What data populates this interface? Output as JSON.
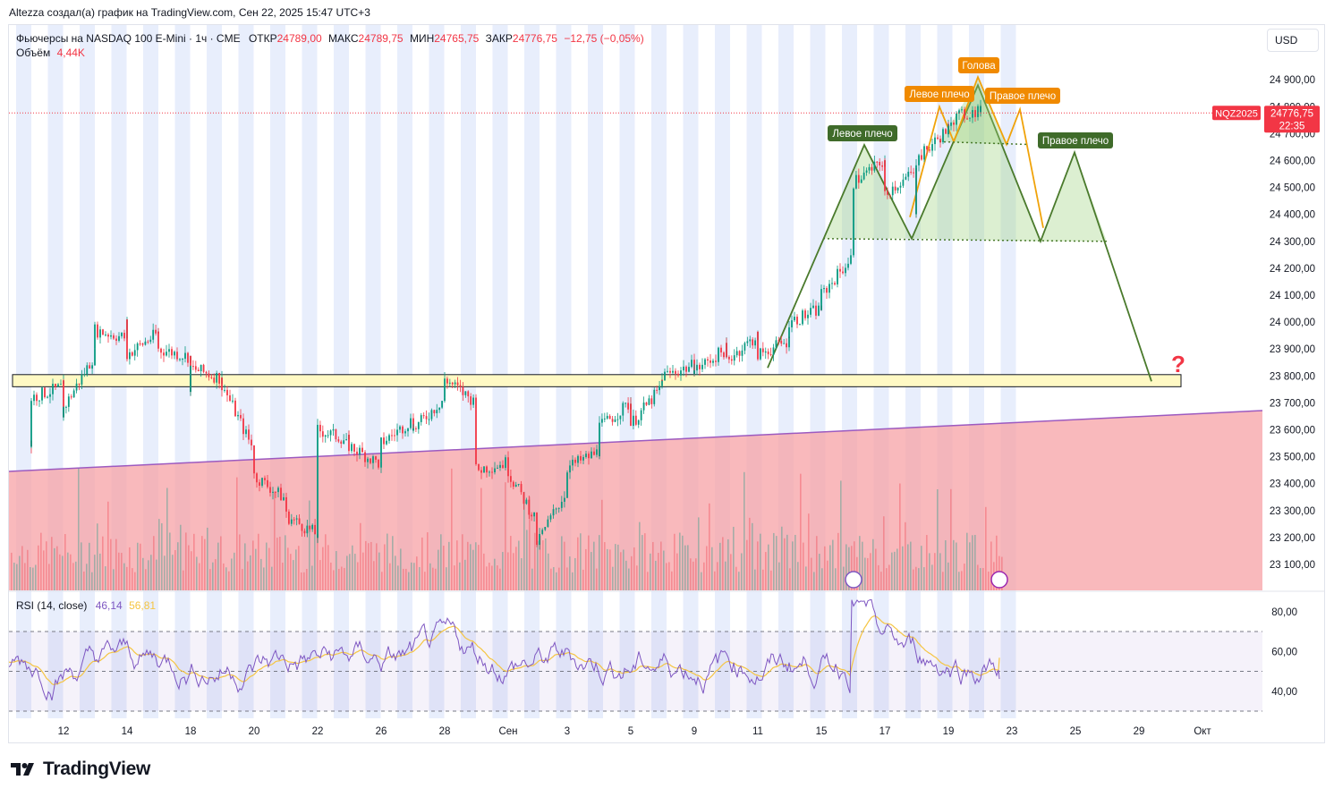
{
  "header": {
    "attribution": "Altezza создал(а) график на TradingView.com, Сен 22, 2025 15:47 UTC+3"
  },
  "legend": {
    "symbol": "Фьючерсы на NASDAQ 100 E-Mini · 1ч · CME",
    "open_label": "ОТКР",
    "open": "24789,00",
    "high_label": "МАКС",
    "high": "24789,75",
    "low_label": "МИН",
    "low": "24765,75",
    "close_label": "ЗАКР",
    "close": "24776,75",
    "change": "−12,75 (−0,05%)",
    "volume_label": "Объём",
    "volume": "4,44K"
  },
  "currency": "USD",
  "price_tag": {
    "symbol": "NQZ2025",
    "price": "24776,75",
    "countdown": "22:35"
  },
  "rsi_legend": {
    "label": "RSI (14, close)",
    "rsi": "46,14",
    "ma": "56,81"
  },
  "logo": {
    "text": "TradingView"
  },
  "colors": {
    "up": "#089981",
    "down": "#f23645",
    "support_zone": "#fff9c4",
    "red_zone": "#f7a1a6",
    "trend_line": "#9c5ac0",
    "pattern_green": "#4a7a2c",
    "pattern_orange": "#f0a30a",
    "rsi_line": "#7e57c2",
    "rsi_ma": "#f5c542",
    "session_band": "#e8eefc"
  },
  "chart_data": {
    "type": "candlestick",
    "title": "",
    "price_axis": {
      "min": 23030,
      "max": 24980,
      "ticks": [
        23100,
        23200,
        23300,
        23400,
        23500,
        23600,
        23700,
        23800,
        23900,
        24000,
        24100,
        24200,
        24300,
        24400,
        24500,
        24600,
        24700,
        24800,
        24900
      ],
      "tick_labels": [
        "23 100,00",
        "23 200,00",
        "23 300,00",
        "23 400,00",
        "23 500,00",
        "23 600,00",
        "23 700,00",
        "23 800,00",
        "23 900,00",
        "24 000,00",
        "24 100,00",
        "24 200,00",
        "24 300,00",
        "24 400,00",
        "24 500,00",
        "24 600,00",
        "24 700,00",
        "24 800,00",
        "24 900,00"
      ]
    },
    "date_axis": {
      "labels": [
        "12",
        "14",
        "18",
        "20",
        "22",
        "26",
        "28",
        "Сен",
        "3",
        "5",
        "9",
        "11",
        "15",
        "17",
        "19",
        "23",
        "25",
        "29",
        "Окт"
      ]
    },
    "price_path": [
      [
        "Aug 11",
        23560
      ],
      [
        "Aug 11",
        23720
      ],
      [
        "Aug 12",
        23760
      ],
      [
        "Aug 12",
        23640
      ],
      [
        "Aug 12",
        23680
      ],
      [
        "Aug 13",
        23880
      ],
      [
        "Aug 13",
        23970
      ],
      [
        "Aug 14",
        23940
      ],
      [
        "Aug 14",
        24010
      ],
      [
        "Aug 14",
        23880
      ],
      [
        "Aug 15",
        23960
      ],
      [
        "Aug 15",
        23900
      ],
      [
        "Aug 18",
        23870
      ],
      [
        "Aug 18",
        23760
      ],
      [
        "Aug 18",
        23830
      ],
      [
        "Aug 19",
        23790
      ],
      [
        "Aug 19",
        23770
      ],
      [
        "Aug 20",
        23520
      ],
      [
        "Aug 20",
        23430
      ],
      [
        "Aug 21",
        23340
      ],
      [
        "Aug 21",
        23280
      ],
      [
        "Aug 22",
        23210
      ],
      [
        "Aug 22",
        23600
      ],
      [
        "Aug 25",
        23560
      ],
      [
        "Aug 25",
        23540
      ],
      [
        "Aug 26",
        23470
      ],
      [
        "Aug 26",
        23550
      ],
      [
        "Aug 27",
        23640
      ],
      [
        "Aug 27",
        23600
      ],
      [
        "Aug 28",
        23720
      ],
      [
        "Aug 28",
        23790
      ],
      [
        "Aug 29",
        23700
      ],
      [
        "Aug 29",
        23450
      ],
      [
        "Sep 1",
        23480
      ],
      [
        "Sep 1",
        23440
      ],
      [
        "Sep 2",
        23260
      ],
      [
        "Sep 2",
        23180
      ],
      [
        "Sep 3",
        23380
      ],
      [
        "Sep 3",
        23460
      ],
      [
        "Sep 4",
        23520
      ],
      [
        "Sep 4",
        23610
      ],
      [
        "Sep 5",
        23700
      ],
      [
        "Sep 5",
        23620
      ],
      [
        "Sep 8",
        23760
      ],
      [
        "Sep 8",
        23800
      ],
      [
        "Sep 9",
        23840
      ],
      [
        "Sep 9",
        23820
      ],
      [
        "Sep 10",
        23900
      ],
      [
        "Sep 10",
        23860
      ],
      [
        "Sep 11",
        23950
      ],
      [
        "Sep 11",
        23880
      ],
      [
        "Sep 12",
        23930
      ],
      [
        "Sep 12",
        24000
      ],
      [
        "Sep 15",
        24050
      ],
      [
        "Sep 15",
        24100
      ],
      [
        "Sep 16",
        24250
      ],
      [
        "Sep 16",
        24520
      ],
      [
        "Sep 17",
        24600
      ],
      [
        "Sep 17",
        24480
      ],
      [
        "Sep 18",
        24560
      ],
      [
        "Sep 18",
        24420
      ],
      [
        "Sep 18",
        24600
      ],
      [
        "Sep 19",
        24720
      ],
      [
        "Sep 19",
        24690
      ],
      [
        "Sep 19",
        24750
      ],
      [
        "Sep 22",
        24790
      ],
      [
        "Sep 22",
        24770
      ]
    ],
    "levels": {
      "support_zone": [
        23760,
        23805
      ],
      "current": 24776.75
    },
    "annotations": [
      "Левое плечо",
      "Голова",
      "Правое плечо",
      "Левое плечо",
      "Правое плечо",
      "?"
    ],
    "rsi": {
      "ticks": [
        40,
        60,
        80
      ],
      "tick_labels": [
        "40,00",
        "60,00",
        "80,00"
      ],
      "bands": [
        30,
        70
      ],
      "current": 46.14,
      "ma": 56.81
    }
  }
}
